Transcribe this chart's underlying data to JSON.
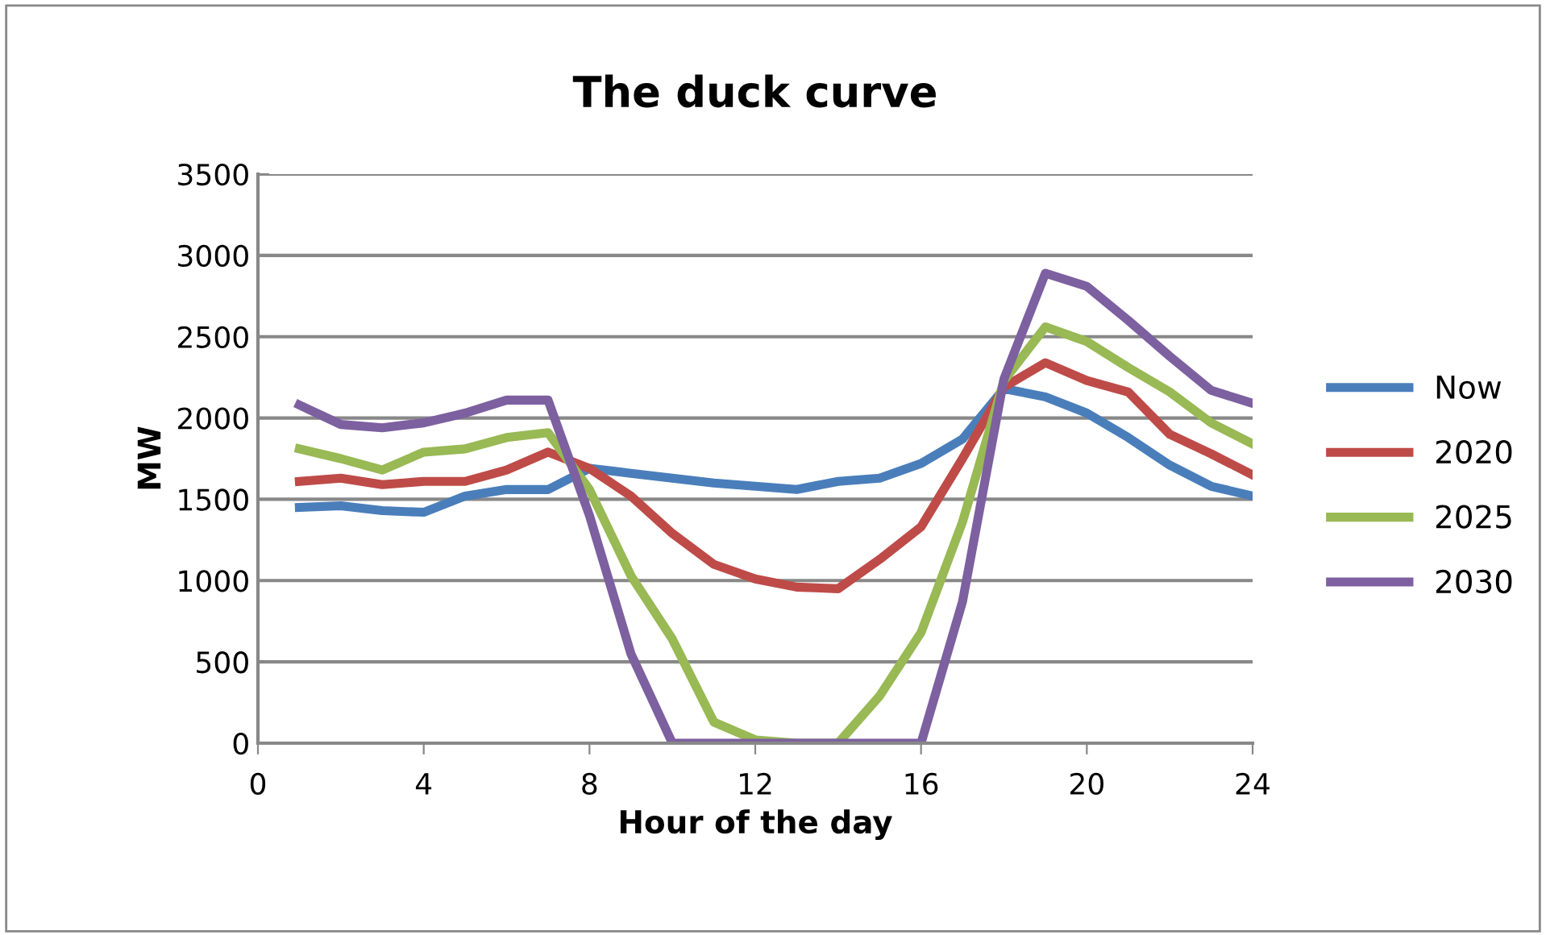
{
  "chart_data": {
    "type": "line",
    "title": "The duck curve",
    "xlabel": "Hour of the day",
    "ylabel": "MW",
    "x": [
      1,
      2,
      3,
      4,
      5,
      6,
      7,
      8,
      9,
      10,
      11,
      12,
      13,
      14,
      15,
      16,
      17,
      18,
      19,
      20,
      21,
      22,
      23,
      24
    ],
    "series": [
      {
        "name": "Now",
        "color": "#4a7ebb",
        "values": [
          1450,
          1460,
          1430,
          1420,
          1520,
          1560,
          1560,
          1690,
          1660,
          1630,
          1600,
          1580,
          1560,
          1610,
          1630,
          1720,
          1870,
          2180,
          2130,
          2030,
          1880,
          1710,
          1580,
          1520
        ]
      },
      {
        "name": "2020",
        "color": "#be4b48",
        "values": [
          1610,
          1630,
          1590,
          1610,
          1610,
          1680,
          1790,
          1690,
          1520,
          1290,
          1100,
          1010,
          960,
          950,
          1130,
          1330,
          1750,
          2190,
          2340,
          2230,
          2160,
          1900,
          1780,
          1650
        ]
      },
      {
        "name": "2025",
        "color": "#98b954",
        "values": [
          1810,
          1750,
          1680,
          1790,
          1810,
          1880,
          1910,
          1560,
          1030,
          640,
          130,
          20,
          0,
          0,
          290,
          680,
          1360,
          2230,
          2560,
          2470,
          2310,
          2160,
          1970,
          1840
        ]
      },
      {
        "name": "2030",
        "color": "#7d60a0",
        "values": [
          2080,
          1960,
          1940,
          1970,
          2030,
          2110,
          2110,
          1400,
          550,
          0,
          0,
          0,
          0,
          0,
          0,
          0,
          870,
          2240,
          2890,
          2810,
          2600,
          2380,
          2170,
          2090
        ]
      }
    ],
    "xlim": [
      0,
      24
    ],
    "xticks": [
      0,
      4,
      8,
      12,
      16,
      20,
      24
    ],
    "ylim": [
      0,
      3500
    ],
    "yticks": [
      0,
      500,
      1000,
      1500,
      2000,
      2500,
      3000,
      3500
    ],
    "grid": "y",
    "legend": "right",
    "marker": "none",
    "line_style": "solid"
  }
}
